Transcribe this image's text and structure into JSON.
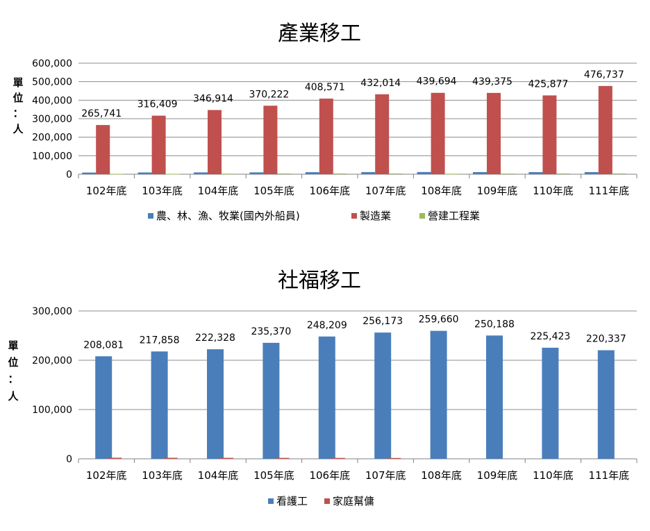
{
  "chart_data": [
    {
      "type": "bar",
      "title": "產業移工",
      "ylabel": "單位：人",
      "ylim": [
        0,
        600000
      ],
      "yticks": [
        "0",
        "100,000",
        "200,000",
        "300,000",
        "400,000",
        "500,000",
        "600,000"
      ],
      "grid": true,
      "legend": "bottom",
      "categories": [
        "102年底",
        "103年底",
        "104年底",
        "105年底",
        "106年底",
        "107年底",
        "108年底",
        "109年底",
        "110年底",
        "111年底"
      ],
      "series": [
        {
          "name": "農、林、漁、牧業(國內外船員)",
          "color": "#4a7ebb",
          "values": [
            9000,
            9500,
            9800,
            10000,
            11000,
            11500,
            11800,
            11600,
            11200,
            11500
          ],
          "labels": null
        },
        {
          "name": "製造業",
          "color": "#c0504d",
          "values": [
            265741,
            316409,
            346914,
            370222,
            408571,
            432014,
            439694,
            439375,
            425877,
            476737
          ],
          "labels": [
            "265,741",
            "316,409",
            "346,914",
            "370,222",
            "408,571",
            "432,014",
            "439,694",
            "439,375",
            "425,877",
            "476,737"
          ]
        },
        {
          "name": "營建工程業",
          "color": "#9bbb59",
          "values": [
            1500,
            2000,
            3000,
            4000,
            4000,
            4000,
            2500,
            3500,
            4000,
            4000
          ],
          "labels": null
        }
      ]
    },
    {
      "type": "bar",
      "title": "社福移工",
      "ylabel": "單位：人",
      "ylim": [
        0,
        300000
      ],
      "yticks": [
        "0",
        "100,000",
        "200,000",
        "300,000"
      ],
      "grid": true,
      "legend": "bottom",
      "categories": [
        "102年底",
        "103年底",
        "104年底",
        "105年底",
        "106年底",
        "107年底",
        "108年底",
        "109年底",
        "110年底",
        "111年底"
      ],
      "series": [
        {
          "name": "看護工",
          "color": "#4a7ebb",
          "values": [
            208081,
            217858,
            222328,
            235370,
            248209,
            256173,
            259660,
            250188,
            225423,
            220337
          ],
          "labels": [
            "208,081",
            "217,858",
            "222,328",
            "235,370",
            "248,209",
            "256,173",
            "259,660",
            "250,188",
            "225,423",
            "220,337"
          ]
        },
        {
          "name": "家庭幫傭",
          "color": "#c0504d",
          "values": [
            2200,
            2100,
            2000,
            1900,
            1800,
            1700,
            0,
            0,
            0,
            0
          ],
          "labels": null
        }
      ]
    }
  ]
}
